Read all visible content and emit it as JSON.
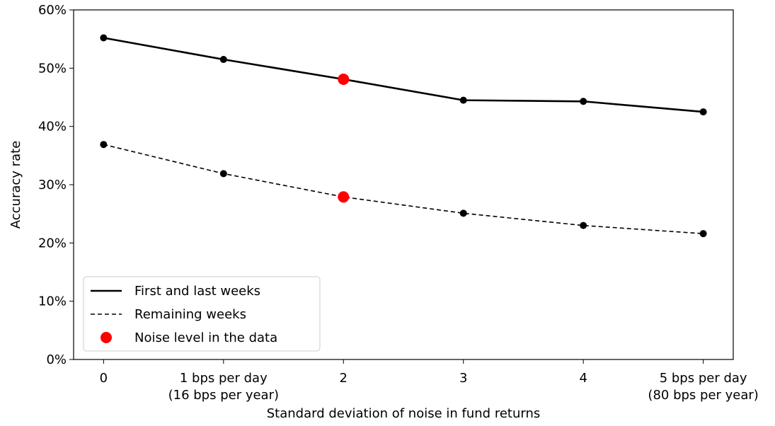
{
  "chart_data": {
    "type": "line",
    "x_label": "Standard deviation of noise in fund returns",
    "y_label": "Accuracy rate",
    "x": [
      0,
      1,
      2,
      3,
      4,
      5
    ],
    "series": [
      {
        "name": "First and last weeks",
        "color": "#000000",
        "dash": "solid",
        "values": [
          55.2,
          51.5,
          48.1,
          44.5,
          44.3,
          42.5
        ]
      },
      {
        "name": "Remaining weeks",
        "color": "#000000",
        "dash": "dashed",
        "values": [
          36.9,
          31.9,
          27.9,
          25.1,
          23.0,
          21.6
        ]
      }
    ],
    "highlight": {
      "name": "Noise level in the data",
      "color": "#ff0000",
      "x": 2
    },
    "xlim": [
      -0.25,
      5.25
    ],
    "xticks": [
      {
        "value": 0,
        "label": [
          "0"
        ]
      },
      {
        "value": 1,
        "label": [
          "1 bps per day",
          "(16 bps per year)"
        ]
      },
      {
        "value": 2,
        "label": [
          "2"
        ]
      },
      {
        "value": 3,
        "label": [
          "3"
        ]
      },
      {
        "value": 4,
        "label": [
          "4"
        ]
      },
      {
        "value": 5,
        "label": [
          "5 bps per day",
          "(80 bps per year)"
        ]
      }
    ],
    "ylim": [
      0,
      60
    ],
    "yticks": [
      {
        "value": 0,
        "label": "0%"
      },
      {
        "value": 10,
        "label": "10%"
      },
      {
        "value": 20,
        "label": "20%"
      },
      {
        "value": 30,
        "label": "30%"
      },
      {
        "value": 40,
        "label": "40%"
      },
      {
        "value": 50,
        "label": "50%"
      },
      {
        "value": 60,
        "label": "60%"
      }
    ],
    "grid": false,
    "legend": "lower-left"
  }
}
